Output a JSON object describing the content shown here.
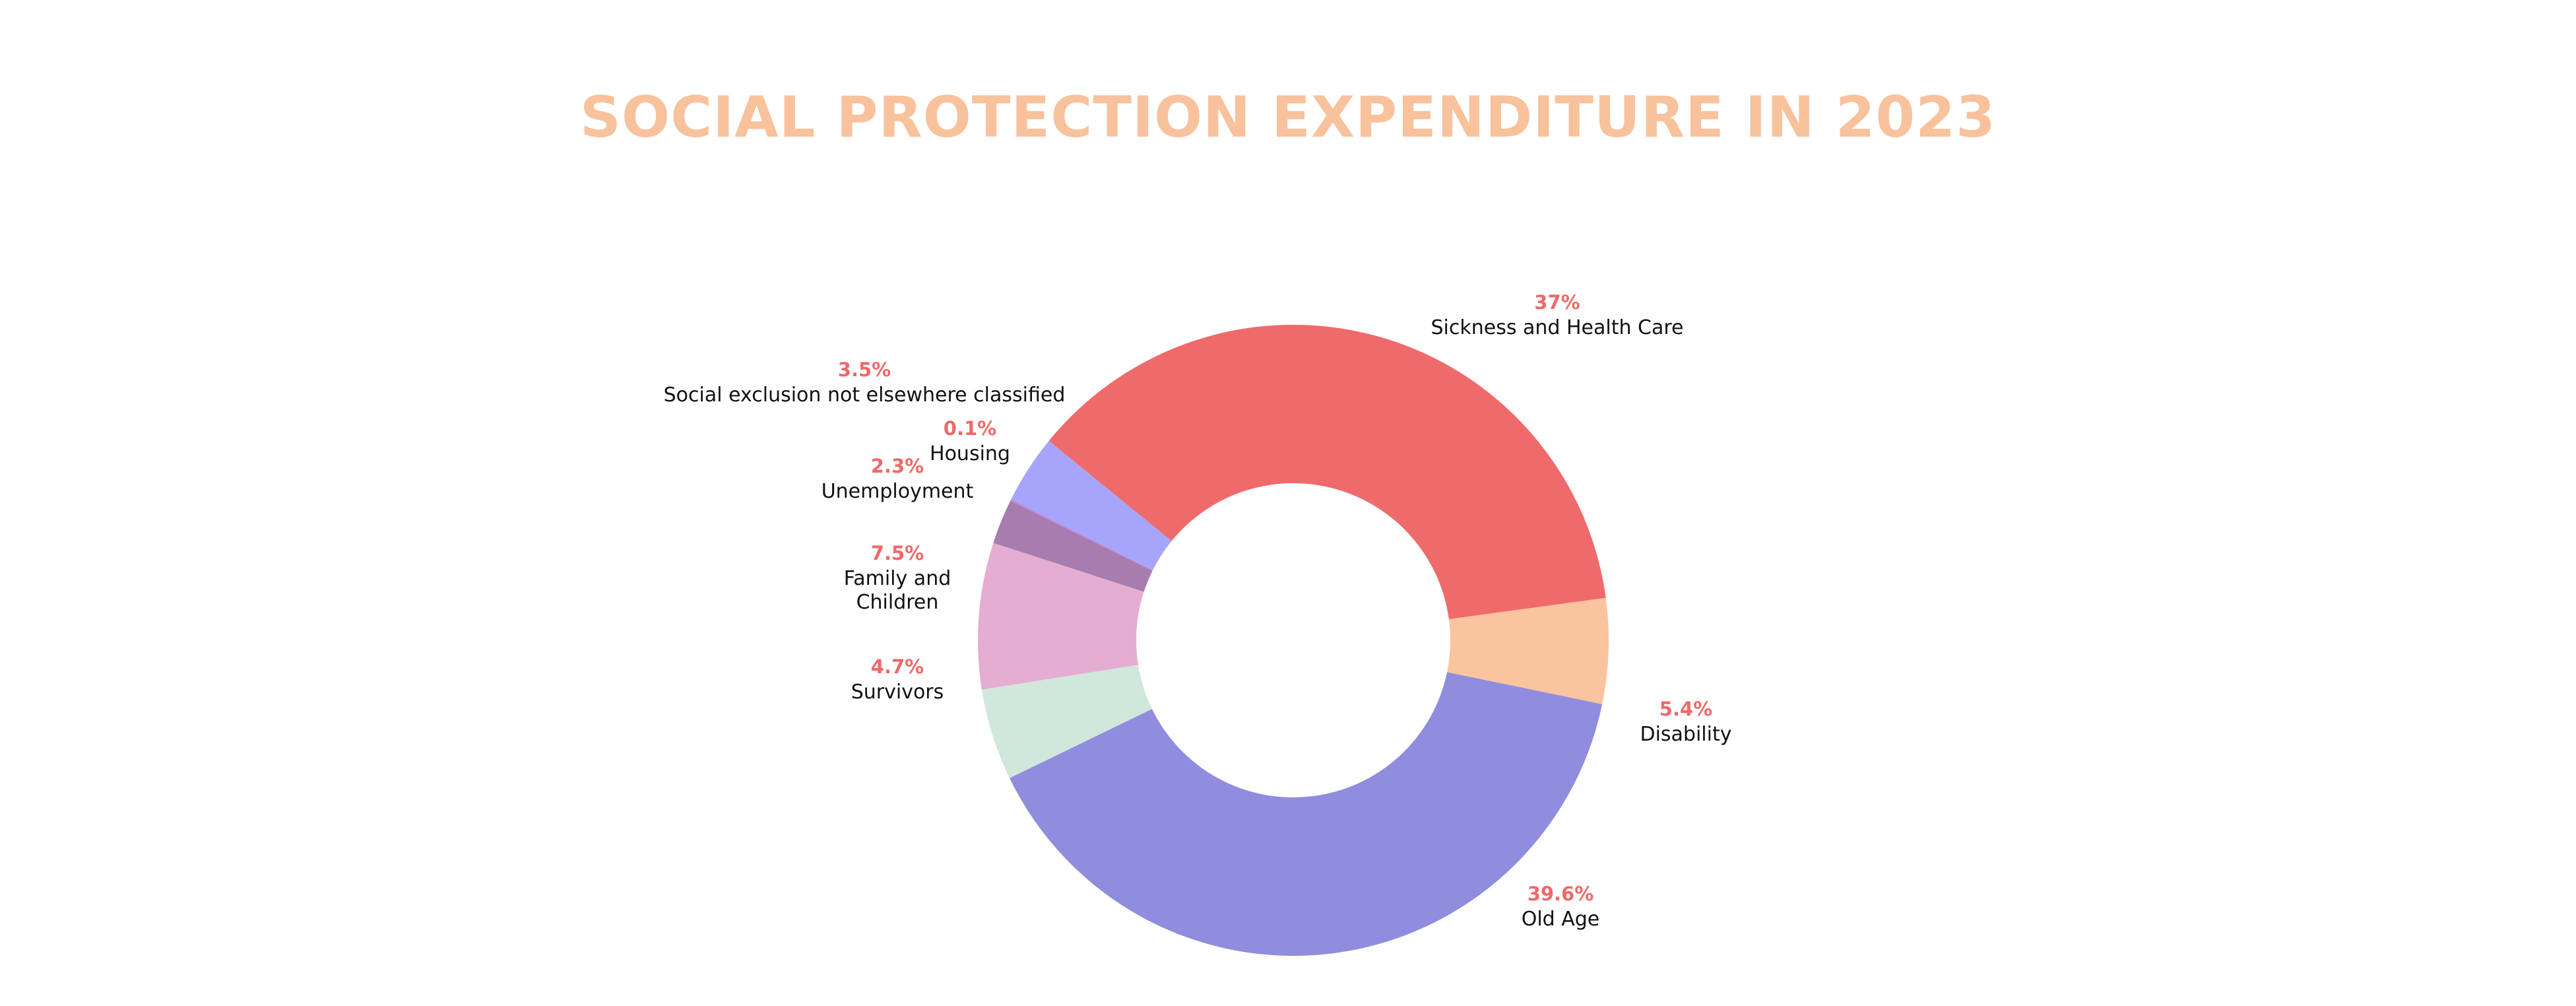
{
  "chart_data": {
    "type": "pie",
    "title": "SOCIAL PROTECTION EXPENDITURE IN 2023",
    "donut": true,
    "colors": {
      "title": "#F8C29D",
      "percent_label": "#EE6A6A",
      "background": "#FFFFFF"
    },
    "slices": [
      {
        "name": "Sickness and Health Care",
        "value": 37,
        "label": "37%",
        "color": "#EF6B6B"
      },
      {
        "name": "Disability",
        "value": 5.4,
        "label": "5.4%",
        "color": "#F9C49E"
      },
      {
        "name": "Old Age",
        "value": 39.6,
        "label": "39.6%",
        "color": "#908CDE"
      },
      {
        "name": "Survivors",
        "value": 4.7,
        "label": "4.7%",
        "color": "#D0E8DC"
      },
      {
        "name": "Family and Children",
        "value": 7.5,
        "label": "7.5%",
        "color": "#E5ADD1"
      },
      {
        "name": "Unemployment",
        "value": 2.3,
        "label": "2.3%",
        "color": "#A77DB0"
      },
      {
        "name": "Housing",
        "value": 0.1,
        "label": "0.1%",
        "color": "#B98CE6"
      },
      {
        "name": "Social exclusion not elsewhere classified",
        "value": 3.5,
        "label": "3.5%",
        "color": "#A7A5FB"
      }
    ]
  }
}
